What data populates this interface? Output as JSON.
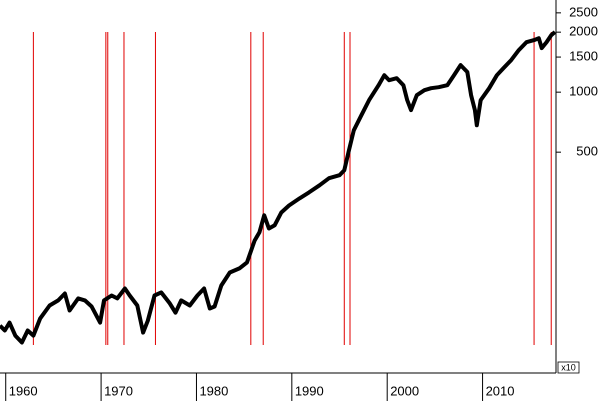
{
  "chart_data": {
    "type": "line",
    "annotation": "x10",
    "log_y": true,
    "xlim": [
      1959.4,
      2017.7
    ],
    "xticks": [
      1960,
      1970,
      1980,
      1990,
      2000,
      2010
    ],
    "ylim": [
      39,
      2900
    ],
    "yticks": [
      500,
      1000,
      1500,
      2000,
      2500
    ],
    "y_axis_side": "right",
    "series": [
      {
        "color": "#000000",
        "x": [
          1959.4,
          1959.9,
          1960.4,
          1961.0,
          1961.7,
          1962.3,
          1962.9,
          1963.6,
          1964.6,
          1965.5,
          1966.2,
          1966.7,
          1967.6,
          1968.3,
          1969.0,
          1969.9,
          1970.3,
          1971.1,
          1971.7,
          1972.5,
          1973.0,
          1973.8,
          1974.4,
          1974.9,
          1975.6,
          1976.3,
          1977.2,
          1977.8,
          1978.4,
          1979.3,
          1980.1,
          1980.8,
          1981.4,
          1981.9,
          1982.6,
          1983.5,
          1984.5,
          1985.3,
          1986.1,
          1986.6,
          1987.1,
          1987.6,
          1988.2,
          1988.9,
          1989.7,
          1990.8,
          1991.8,
          1992.9,
          1993.9,
          1995.0,
          1995.5,
          1996.0,
          1996.5,
          1997.3,
          1998.1,
          1999.1,
          1999.7,
          2000.2,
          2001.0,
          2001.7,
          2002.1,
          2002.5,
          2003.1,
          2003.9,
          2004.6,
          2005.4,
          2006.3,
          2007.0,
          2007.7,
          2008.4,
          2008.8,
          2009.2,
          2009.4,
          2009.8,
          2010.7,
          2011.5,
          2012.2,
          2013.0,
          2013.8,
          2014.6,
          2015.4,
          2015.9,
          2016.2,
          2016.7,
          2017.2,
          2017.6
        ],
        "values": [
          67.4,
          63.7,
          69.8,
          60.1,
          55.5,
          63.7,
          60.1,
          73.1,
          85.1,
          90.2,
          97.7,
          80.3,
          92.3,
          90.2,
          84.1,
          69.8,
          90.2,
          95.5,
          92.3,
          103.5,
          95.5,
          85.1,
          62.2,
          71.4,
          95.5,
          98.9,
          87.1,
          78.3,
          90.2,
          85.1,
          95.5,
          103.5,
          82.2,
          84.1,
          107.2,
          124.5,
          130.6,
          140,
          180,
          198,
          241,
          207,
          215,
          249,
          270,
          293,
          314,
          341,
          370,
          383,
          406,
          512,
          644,
          766,
          912,
          1084,
          1217,
          1148,
          1175,
          1084,
          912,
          813,
          966,
          1023,
          1047,
          1059,
          1084,
          1217,
          1367,
          1262,
          966,
          813,
          682,
          912,
          1047,
          1217,
          1321,
          1449,
          1626,
          1782,
          1824,
          1866,
          1663,
          1782,
          1932,
          2004
        ]
      }
    ],
    "vlines": {
      "color": "#e00000",
      "x": [
        1962.9,
        1970.5,
        1970.7,
        1972.4,
        1975.7,
        1985.7,
        1987.0,
        1995.5,
        1996.1,
        2015.4,
        2017.2
      ]
    }
  }
}
